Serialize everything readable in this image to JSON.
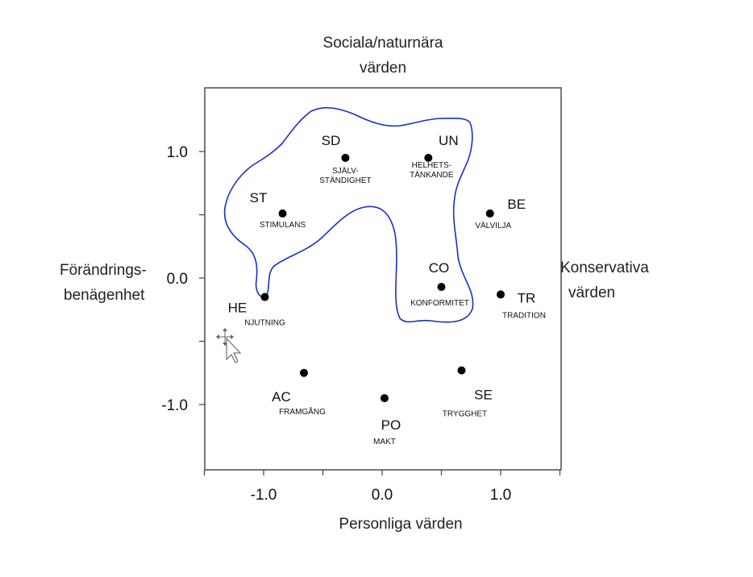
{
  "chart_data": {
    "type": "scatter",
    "title_top": [
      "Sociala/naturnära",
      "värden"
    ],
    "xlabel": "Personliga värden",
    "left_title": [
      "Förändrings-",
      "benägenhet"
    ],
    "right_title": [
      "Konservativa",
      "värden"
    ],
    "xlim": [
      -1.5,
      1.5
    ],
    "ylim": [
      -1.5,
      1.5
    ],
    "x_ticks": [
      -1.0,
      0.0,
      1.0
    ],
    "x_tick_labels": [
      "-1.0",
      "0.0",
      "1.0"
    ],
    "y_ticks": [
      1.0,
      0.0,
      -1.0
    ],
    "y_tick_labels": [
      "1.0",
      "0.0",
      "-1.0"
    ],
    "grid": false,
    "point_color": "#000000",
    "outline_color": "#1a2fc7",
    "points": [
      {
        "code": "SD",
        "name": [
          "SJÄLV-",
          "STÄNDIGHET"
        ],
        "x": -0.31,
        "y": 0.95
      },
      {
        "code": "UN",
        "name": [
          "HELHETS-",
          "TÄNKANDE"
        ],
        "x": 0.39,
        "y": 0.95
      },
      {
        "code": "ST",
        "name": [
          "STIMULANS"
        ],
        "x": -0.84,
        "y": 0.51
      },
      {
        "code": "BE",
        "name": [
          "VÄLVILJA"
        ],
        "x": 0.91,
        "y": 0.51
      },
      {
        "code": "CO",
        "name": [
          "KONFORMITET"
        ],
        "x": 0.5,
        "y": -0.07
      },
      {
        "code": "TR",
        "name": [
          "TRADITION"
        ],
        "x": 1.0,
        "y": -0.13
      },
      {
        "code": "HE",
        "name": [
          "NJUTNING"
        ],
        "x": -0.99,
        "y": -0.15
      },
      {
        "code": "AC",
        "name": [
          "FRAMGÅNG"
        ],
        "x": -0.66,
        "y": -0.75
      },
      {
        "code": "SE",
        "name": [
          "TRYGGHET"
        ],
        "x": 0.67,
        "y": -0.73
      },
      {
        "code": "PO",
        "name": [
          "MAKT"
        ],
        "x": 0.02,
        "y": -0.95
      }
    ],
    "outlined_points": [
      "SD",
      "UN",
      "ST",
      "HE",
      "CO"
    ]
  }
}
